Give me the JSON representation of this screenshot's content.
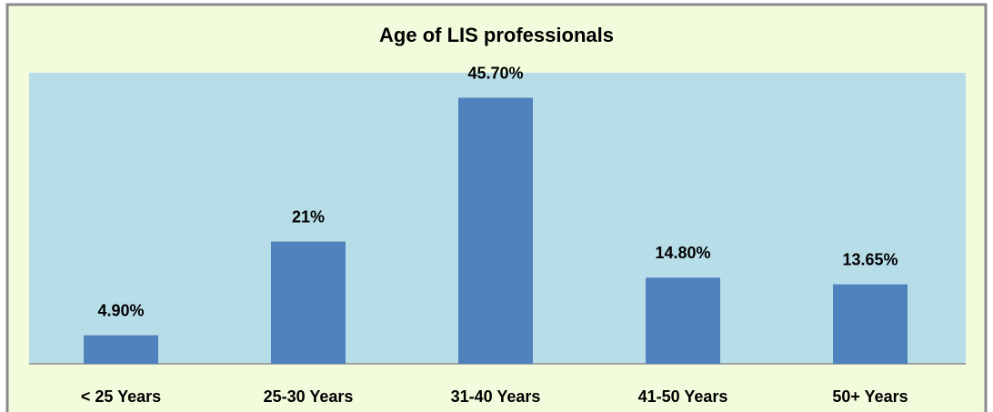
{
  "chart_data": {
    "type": "bar",
    "title": "Age of LIS professionals",
    "categories": [
      "< 25 Years",
      "25-30 Years",
      "31-40 Years",
      "41-50 Years",
      "50+ Years"
    ],
    "values": [
      4.9,
      21,
      45.7,
      14.8,
      13.65
    ],
    "value_labels": [
      "4.90%",
      "21%",
      "45.70%",
      "14.80%",
      "13.65%"
    ],
    "color": "#4f81bd",
    "ylim": [
      0,
      50
    ]
  }
}
